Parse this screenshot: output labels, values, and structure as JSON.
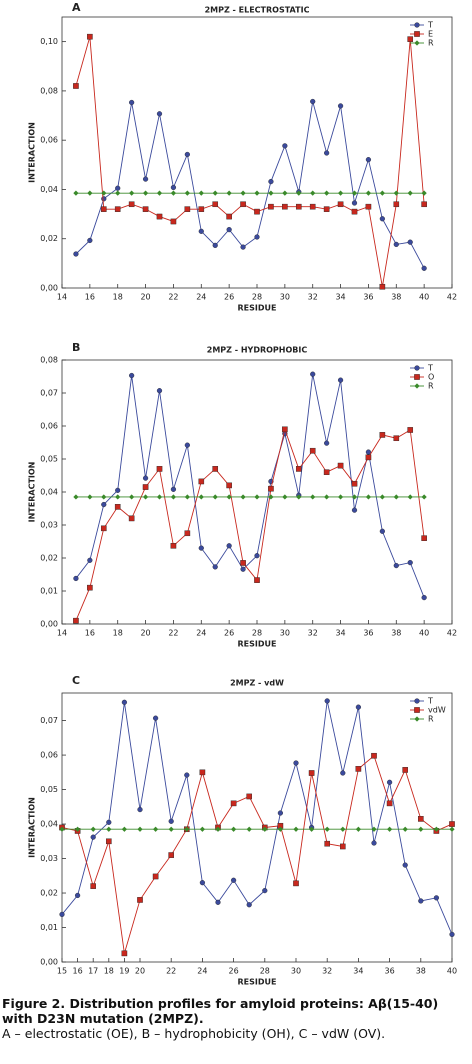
{
  "chart_data": [
    {
      "type": "line",
      "panel": "A",
      "title": "2MPZ - ELECTROSTATIC",
      "xlabel": "RESIDUE",
      "ylabel": "INTERACTION",
      "x": [
        15,
        16,
        17,
        18,
        19,
        20,
        21,
        22,
        23,
        24,
        25,
        26,
        27,
        28,
        29,
        30,
        31,
        32,
        33,
        34,
        35,
        36,
        37,
        38,
        39,
        40
      ],
      "series": [
        {
          "name": "T",
          "color": "#3b4a9c",
          "marker": "circle",
          "values": [
            0.0138,
            0.0193,
            0.0362,
            0.0405,
            0.0753,
            0.0442,
            0.0707,
            0.0408,
            0.0542,
            0.023,
            0.0173,
            0.0237,
            0.0166,
            0.0207,
            0.0432,
            0.0577,
            0.039,
            0.0757,
            0.0548,
            0.0739,
            0.0345,
            0.0521,
            0.0281,
            0.0177,
            0.0186,
            0.008
          ]
        },
        {
          "name": "E",
          "color": "#c8281e",
          "marker": "square",
          "values": [
            0.082,
            0.102,
            0.032,
            0.032,
            0.034,
            0.032,
            0.029,
            0.027,
            0.032,
            0.032,
            0.034,
            0.029,
            0.034,
            0.031,
            0.033,
            0.033,
            0.033,
            0.033,
            0.032,
            0.034,
            0.031,
            0.033,
            0.0005,
            0.034,
            0.101,
            0.034
          ]
        },
        {
          "name": "R",
          "color": "#3a8a2a",
          "marker": "diamond",
          "values": [
            0.0385,
            0.0385,
            0.0385,
            0.0385,
            0.0385,
            0.0385,
            0.0385,
            0.0385,
            0.0385,
            0.0385,
            0.0385,
            0.0385,
            0.0385,
            0.0385,
            0.0385,
            0.0385,
            0.0385,
            0.0385,
            0.0385,
            0.0385,
            0.0385,
            0.0385,
            0.0385,
            0.0385,
            0.0385,
            0.0385
          ]
        }
      ],
      "xlim": [
        14,
        42
      ],
      "xticks": [
        14,
        16,
        18,
        20,
        22,
        24,
        26,
        28,
        30,
        32,
        34,
        36,
        38,
        40,
        42
      ],
      "ylim": [
        0,
        0.11
      ],
      "yticks": [
        {
          "value": 0,
          "label": "0,00"
        },
        {
          "value": 0.02,
          "label": "0,02"
        },
        {
          "value": 0.04,
          "label": "0,04"
        },
        {
          "value": 0.06,
          "label": "0,06"
        },
        {
          "value": 0.08,
          "label": "0,08"
        },
        {
          "value": 0.1,
          "label": "0,10"
        }
      ],
      "grid": false,
      "legend": "upper right"
    },
    {
      "type": "line",
      "panel": "B",
      "title": "2MPZ - HYDROPHOBIC",
      "xlabel": "RESIDUE",
      "ylabel": "INTERACTION",
      "x": [
        15,
        16,
        17,
        18,
        19,
        20,
        21,
        22,
        23,
        24,
        25,
        26,
        27,
        28,
        29,
        30,
        31,
        32,
        33,
        34,
        35,
        36,
        37,
        38,
        39,
        40
      ],
      "series": [
        {
          "name": "T",
          "color": "#3b4a9c",
          "marker": "circle",
          "values": [
            0.0138,
            0.0193,
            0.0362,
            0.0405,
            0.0753,
            0.0442,
            0.0707,
            0.0408,
            0.0542,
            0.023,
            0.0173,
            0.0237,
            0.0166,
            0.0207,
            0.0432,
            0.0577,
            0.039,
            0.0757,
            0.0548,
            0.0739,
            0.0345,
            0.0521,
            0.0281,
            0.0177,
            0.0186,
            0.008
          ]
        },
        {
          "name": "O",
          "color": "#c8281e",
          "marker": "square",
          "values": [
            0.001,
            0.011,
            0.029,
            0.0355,
            0.032,
            0.0415,
            0.047,
            0.0237,
            0.0275,
            0.0432,
            0.047,
            0.042,
            0.0185,
            0.0133,
            0.041,
            0.059,
            0.047,
            0.0525,
            0.046,
            0.048,
            0.0425,
            0.0505,
            0.0573,
            0.0563,
            0.0588,
            0.026
          ]
        },
        {
          "name": "R",
          "color": "#3a8a2a",
          "marker": "diamond",
          "values": [
            0.0385,
            0.0385,
            0.0385,
            0.0385,
            0.0385,
            0.0385,
            0.0385,
            0.0385,
            0.0385,
            0.0385,
            0.0385,
            0.0385,
            0.0385,
            0.0385,
            0.0385,
            0.0385,
            0.0385,
            0.0385,
            0.0385,
            0.0385,
            0.0385,
            0.0385,
            0.0385,
            0.0385,
            0.0385,
            0.0385
          ]
        }
      ],
      "xlim": [
        14,
        42
      ],
      "xticks": [
        14,
        16,
        18,
        20,
        22,
        24,
        26,
        28,
        30,
        32,
        34,
        36,
        38,
        40,
        42
      ],
      "ylim": [
        0,
        0.08
      ],
      "yticks": [
        {
          "value": 0,
          "label": "0,00"
        },
        {
          "value": 0.01,
          "label": "0,01"
        },
        {
          "value": 0.02,
          "label": "0,02"
        },
        {
          "value": 0.03,
          "label": "0,03"
        },
        {
          "value": 0.04,
          "label": "0,04"
        },
        {
          "value": 0.05,
          "label": "0,05"
        },
        {
          "value": 0.06,
          "label": "0,06"
        },
        {
          "value": 0.07,
          "label": "0,07"
        },
        {
          "value": 0.08,
          "label": "0,08"
        }
      ],
      "grid": false,
      "legend": "upper right"
    },
    {
      "type": "line",
      "panel": "C",
      "title": "2MPZ - vdW",
      "xlabel": "RESIDUE",
      "ylabel": "INTERACTION",
      "x": [
        15,
        16,
        17,
        18,
        19,
        20,
        21,
        22,
        23,
        24,
        25,
        26,
        27,
        28,
        29,
        30,
        31,
        32,
        33,
        34,
        35,
        36,
        37,
        38,
        39,
        40
      ],
      "series": [
        {
          "name": "T",
          "color": "#3b4a9c",
          "marker": "circle",
          "values": [
            0.0138,
            0.0193,
            0.0362,
            0.0405,
            0.0753,
            0.0442,
            0.0707,
            0.0408,
            0.0542,
            0.023,
            0.0173,
            0.0237,
            0.0166,
            0.0207,
            0.0432,
            0.0577,
            0.039,
            0.0757,
            0.0548,
            0.0739,
            0.0345,
            0.0521,
            0.0281,
            0.0177,
            0.0186,
            0.008
          ]
        },
        {
          "name": "vdW",
          "color": "#c8281e",
          "marker": "square",
          "values": [
            0.039,
            0.038,
            0.022,
            0.035,
            0.0025,
            0.018,
            0.0248,
            0.031,
            0.0385,
            0.055,
            0.039,
            0.046,
            0.048,
            0.039,
            0.0395,
            0.0228,
            0.0548,
            0.0343,
            0.0335,
            0.056,
            0.0598,
            0.046,
            0.0557,
            0.0415,
            0.038,
            0.04
          ]
        },
        {
          "name": "R",
          "color": "#3a8a2a",
          "marker": "diamond",
          "values": [
            0.0385,
            0.0385,
            0.0385,
            0.0385,
            0.0385,
            0.0385,
            0.0385,
            0.0385,
            0.0385,
            0.0385,
            0.0385,
            0.0385,
            0.0385,
            0.0385,
            0.0385,
            0.0385,
            0.0385,
            0.0385,
            0.0385,
            0.0385,
            0.0385,
            0.0385,
            0.0385,
            0.0385,
            0.0385,
            0.0385
          ]
        }
      ],
      "xlim": [
        15,
        40
      ],
      "xticks": [
        15,
        16,
        17,
        18,
        19,
        20,
        22,
        24,
        26,
        28,
        30,
        32,
        34,
        36,
        38,
        40
      ],
      "ylim": [
        0,
        0.078
      ],
      "yticks": [
        {
          "value": 0,
          "label": "0,00"
        },
        {
          "value": 0.01,
          "label": "0,01"
        },
        {
          "value": 0.02,
          "label": "0,02"
        },
        {
          "value": 0.03,
          "label": "0,03"
        },
        {
          "value": 0.04,
          "label": "0,04"
        },
        {
          "value": 0.05,
          "label": "0,05"
        },
        {
          "value": 0.06,
          "label": "0,06"
        },
        {
          "value": 0.07,
          "label": "0,07"
        }
      ],
      "grid": false,
      "legend": "upper right"
    }
  ],
  "caption": {
    "title": "Figure 2. Distribution profiles for amyloid proteins: Aβ(15-40) with D23N mutation (2MPZ).",
    "text": "A – electrostatic (OE), B – hydrophobicity (OH), C – vdW (OV)."
  }
}
